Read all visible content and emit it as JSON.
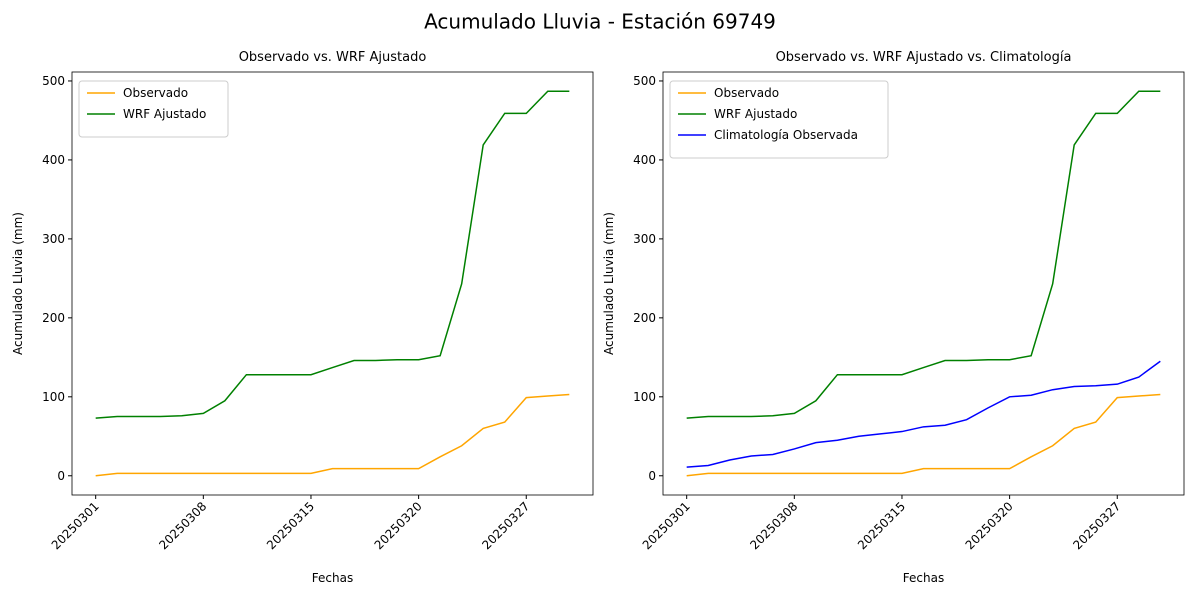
{
  "title": "Acumulado Lluvia - Estación 69749",
  "chart_data": [
    {
      "type": "line",
      "title": "Observado vs. WRF Ajustado",
      "xlabel": "Fechas",
      "ylabel": "Acumulado Lluvia (mm)",
      "categories": [
        "20250301",
        null,
        null,
        null,
        null,
        "20250308",
        null,
        null,
        null,
        null,
        "20250315",
        null,
        null,
        null,
        null,
        "20250320",
        null,
        null,
        null,
        null,
        "20250327",
        null,
        null
      ],
      "series": [
        {
          "name": "Observado",
          "color": "orange",
          "values": [
            0,
            3,
            3,
            3,
            3,
            3,
            3,
            3,
            3,
            3,
            3,
            9,
            9,
            9,
            9,
            9,
            24,
            38,
            60,
            68,
            99,
            101,
            103
          ]
        },
        {
          "name": "WRF Ajustado",
          "color": "green",
          "values": [
            73,
            75,
            75,
            75,
            76,
            79,
            95,
            128,
            128,
            128,
            128,
            137,
            146,
            146,
            147,
            147,
            152,
            243,
            419,
            459,
            459,
            487,
            487
          ]
        }
      ],
      "ylim": [
        -24.35,
        511.35
      ],
      "yticks": [
        0,
        100,
        200,
        300,
        400,
        500
      ],
      "legend": "upper left"
    },
    {
      "type": "line",
      "title": "Observado vs. WRF Ajustado vs. Climatología",
      "xlabel": "Fechas",
      "ylabel": "Acumulado Lluvia (mm)",
      "categories": [
        "20250301",
        null,
        null,
        null,
        null,
        "20250308",
        null,
        null,
        null,
        null,
        "20250315",
        null,
        null,
        null,
        null,
        "20250320",
        null,
        null,
        null,
        null,
        "20250327",
        null,
        null
      ],
      "series": [
        {
          "name": "Observado",
          "color": "orange",
          "values": [
            0,
            3,
            3,
            3,
            3,
            3,
            3,
            3,
            3,
            3,
            3,
            9,
            9,
            9,
            9,
            9,
            24,
            38,
            60,
            68,
            99,
            101,
            103
          ]
        },
        {
          "name": "WRF Ajustado",
          "color": "green",
          "values": [
            73,
            75,
            75,
            75,
            76,
            79,
            95,
            128,
            128,
            128,
            128,
            137,
            146,
            146,
            147,
            147,
            152,
            243,
            419,
            459,
            459,
            487,
            487
          ]
        },
        {
          "name": "Climatología Observada",
          "color": "blue",
          "values": [
            11,
            13,
            20,
            25,
            27,
            34,
            42,
            45,
            50,
            53,
            56,
            62,
            64,
            71,
            86,
            100,
            102,
            109,
            113,
            114,
            116,
            125,
            145
          ]
        }
      ],
      "ylim": [
        -24.35,
        511.35
      ],
      "yticks": [
        0,
        100,
        200,
        300,
        400,
        500
      ],
      "legend": "upper left"
    }
  ]
}
